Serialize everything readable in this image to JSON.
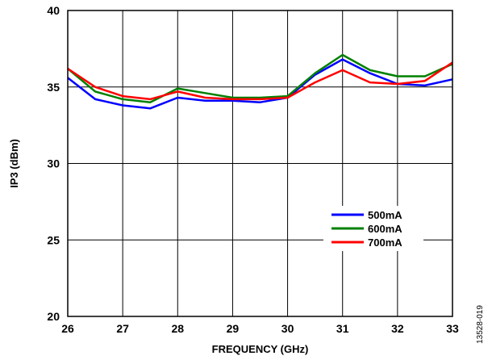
{
  "figure_id": "13528-019",
  "chart_data": {
    "type": "line",
    "title": "",
    "xlabel": "FREQUENCY (GHz)",
    "ylabel": "IP3 (dBm)",
    "xlim": [
      26,
      33
    ],
    "ylim": [
      20,
      40
    ],
    "xticks": [
      26,
      27,
      28,
      29,
      30,
      31,
      32,
      33
    ],
    "yticks": [
      20,
      25,
      30,
      35,
      40
    ],
    "grid": true,
    "legend_position": "lower-right",
    "x": [
      26,
      26.5,
      27,
      27.5,
      28,
      28.5,
      29,
      29.5,
      30,
      30.5,
      31,
      31.5,
      32,
      32.5,
      33
    ],
    "series": [
      {
        "name": "500mA",
        "color": "#0000ff",
        "values": [
          35.6,
          34.2,
          33.8,
          33.6,
          34.3,
          34.1,
          34.1,
          34.0,
          34.3,
          35.8,
          36.8,
          35.9,
          35.2,
          35.1,
          35.5
        ]
      },
      {
        "name": "600mA",
        "color": "#008000",
        "values": [
          36.2,
          34.7,
          34.2,
          34.0,
          34.9,
          34.6,
          34.3,
          34.3,
          34.4,
          35.9,
          37.1,
          36.1,
          35.7,
          35.7,
          36.5
        ]
      },
      {
        "name": "700mA",
        "color": "#ff0000",
        "values": [
          36.2,
          35.0,
          34.4,
          34.2,
          34.7,
          34.3,
          34.2,
          34.2,
          34.3,
          35.3,
          36.1,
          35.3,
          35.2,
          35.4,
          36.6
        ]
      }
    ]
  }
}
